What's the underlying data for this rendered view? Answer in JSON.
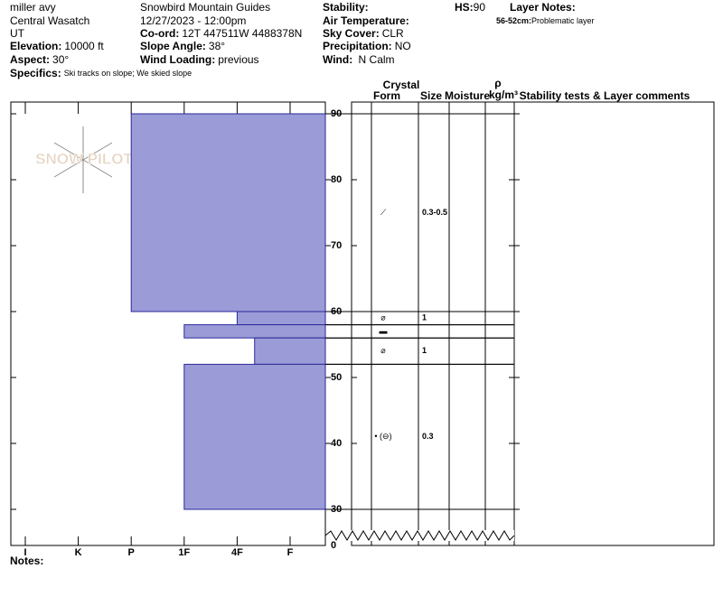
{
  "header": {
    "items": [
      {
        "value": "miller avy"
      },
      {
        "value": "Central Wasatch"
      },
      {
        "value": "UT"
      },
      {
        "label": "Elevation:",
        "value": "10000 ft"
      },
      {
        "label": "Aspect:",
        "value": "30°"
      },
      {
        "label": "Specifics:",
        "value": "Ski tracks on slope; We skied slope"
      },
      {
        "value": "Snowbird Mountain Guides"
      },
      {
        "value": "12/27/2023 - 12:00pm"
      },
      {
        "label": "Co-ord:",
        "value": "12T 447511W 4488378N"
      },
      {
        "label": "Slope Angle:",
        "value": "38°"
      },
      {
        "label": "Wind Loading:",
        "value": "previous"
      },
      {
        "label": "Stability:"
      },
      {
        "label": "Air Temperature:"
      },
      {
        "label": "Sky Cover:",
        "value": "CLR"
      },
      {
        "label": "Precipitation:",
        "value": "NO"
      },
      {
        "label": "Wind:",
        "value": " N Calm"
      },
      {
        "label": "HS:",
        "value": "90"
      },
      {
        "label": "Layer Notes:"
      },
      {
        "label": "56-52cm:",
        "value": "Problematic layer"
      }
    ]
  },
  "logo": "SNOW PILOT",
  "table_headers": {
    "crystal": "Crystal",
    "form": "Form",
    "size": "Size",
    "moisture": "Moisture",
    "rho": "ρ",
    "density": "kg/m³",
    "comments": "Stability tests & Layer comments"
  },
  "notes": "Notes:",
  "chart_data": {
    "type": "hardness_profile",
    "hardness_categories": [
      "I",
      "K",
      "P",
      "1F",
      "4F",
      "F"
    ],
    "ylim": [
      30,
      90
    ],
    "yticks": [
      30,
      40,
      50,
      60,
      70,
      80,
      90
    ],
    "ground_tick": 0,
    "color": "#9b9bd8",
    "layers": [
      {
        "top": 90,
        "bottom": 60,
        "hardness": 3,
        "form": "⟋",
        "size": "0.3-0.5"
      },
      {
        "top": 60,
        "bottom": 58,
        "hardness": 5,
        "form": "⌀",
        "size": "1"
      },
      {
        "top": 58,
        "bottom": 56,
        "hardness": 4,
        "form": "▬"
      },
      {
        "top": 56,
        "bottom": 52,
        "hardness": 5.33,
        "form": "⌀",
        "size": "1"
      },
      {
        "top": 52,
        "bottom": 30,
        "hardness": 4,
        "form": "• (⊖)",
        "size": "0.3"
      }
    ]
  }
}
